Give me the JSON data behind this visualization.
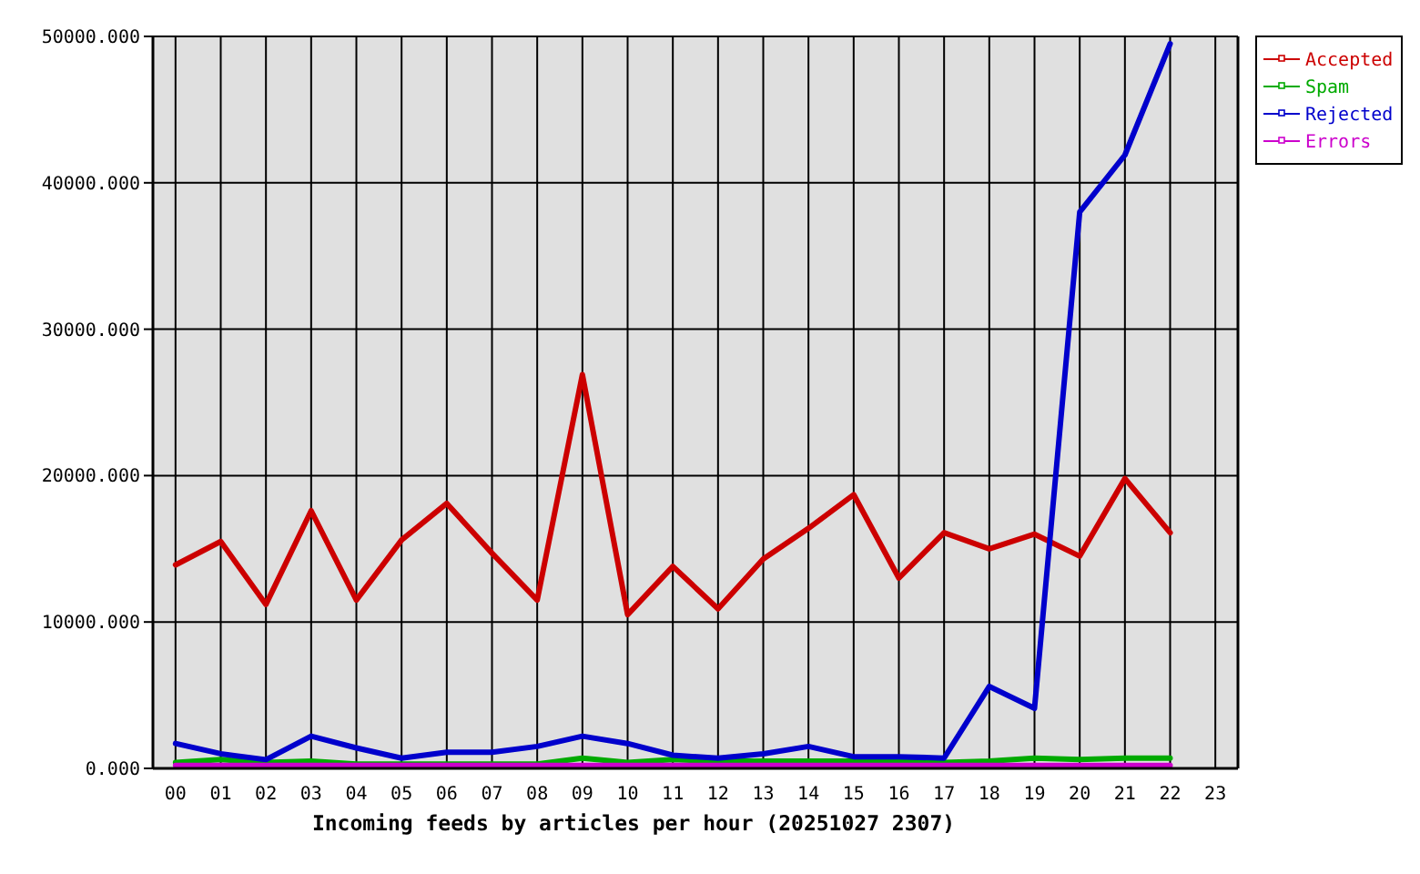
{
  "chart_data": {
    "type": "line",
    "xlabel": "Incoming feeds by articles per hour (20251027 2307)",
    "categories": [
      "00",
      "01",
      "02",
      "03",
      "04",
      "05",
      "06",
      "07",
      "08",
      "09",
      "10",
      "11",
      "12",
      "13",
      "14",
      "15",
      "16",
      "17",
      "18",
      "19",
      "20",
      "21",
      "22",
      "23"
    ],
    "series": [
      {
        "name": "Accepted",
        "color": "#cc0000",
        "values": [
          13900,
          15500,
          11200,
          17600,
          11500,
          15600,
          18100,
          14700,
          11500,
          26900,
          10500,
          13800,
          10900,
          14300,
          16400,
          18700,
          13000,
          16100,
          15000,
          16000,
          14500,
          19800,
          16100,
          null
        ]
      },
      {
        "name": "Spam",
        "color": "#00aa00",
        "values": [
          400,
          600,
          400,
          500,
          300,
          300,
          300,
          300,
          300,
          700,
          400,
          600,
          500,
          500,
          500,
          500,
          500,
          400,
          500,
          700,
          600,
          700,
          700,
          null
        ]
      },
      {
        "name": "Rejected",
        "color": "#0000cc",
        "values": [
          1700,
          1000,
          600,
          2200,
          1400,
          700,
          1100,
          1100,
          1500,
          2200,
          1700,
          900,
          700,
          1000,
          1500,
          800,
          800,
          700,
          5600,
          4100,
          38000,
          41900,
          49500,
          null
        ]
      },
      {
        "name": "Errors",
        "color": "#cc00cc",
        "values": [
          200,
          200,
          200,
          200,
          200,
          200,
          200,
          200,
          200,
          200,
          200,
          200,
          200,
          200,
          200,
          200,
          200,
          200,
          200,
          200,
          200,
          200,
          200,
          null
        ]
      }
    ],
    "ylim": [
      0,
      50000
    ],
    "yticks": [
      {
        "value": 0,
        "label": "0.000"
      },
      {
        "value": 10000,
        "label": "10000.000"
      },
      {
        "value": 20000,
        "label": "20000.000"
      },
      {
        "value": 30000,
        "label": "30000.000"
      },
      {
        "value": 40000,
        "label": "40000.000"
      },
      {
        "value": 50000,
        "label": "50000.000"
      }
    ],
    "grid": true,
    "legend": "top right"
  }
}
